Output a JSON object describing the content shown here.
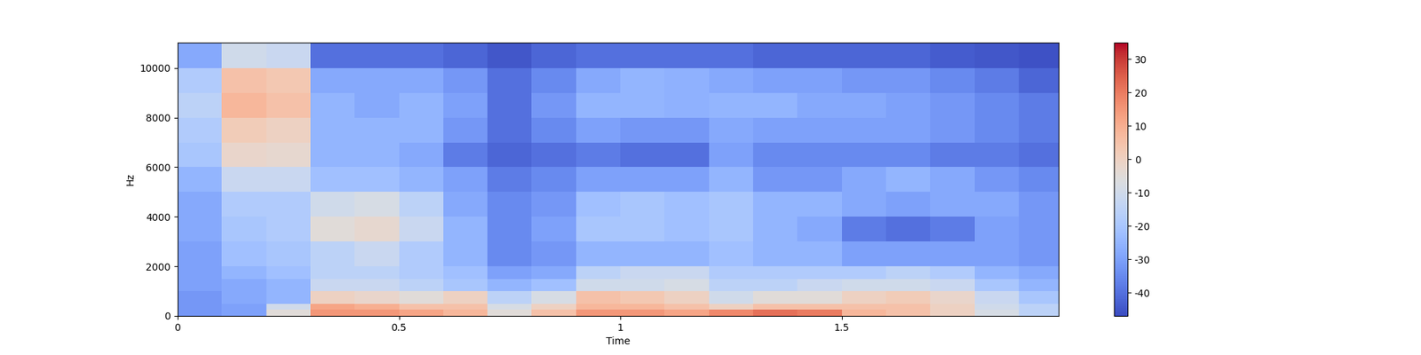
{
  "chart_data": {
    "type": "heatmap",
    "x_label": "Time",
    "y_label": "Hz",
    "x_edges": [
      0,
      0.1,
      0.2,
      0.3,
      0.4,
      0.5,
      0.6,
      0.7,
      0.8,
      0.9,
      1.0,
      1.1,
      1.2,
      1.3,
      1.4,
      1.5,
      1.6,
      1.7,
      1.8,
      1.9,
      1.99
    ],
    "y_edges": [
      0,
      250,
      500,
      1000,
      1500,
      2000,
      3000,
      4000,
      5000,
      6000,
      7000,
      8000,
      9000,
      10000,
      11025
    ],
    "cells": [
      [
        -32,
        -30,
        -5,
        15,
        15,
        12,
        8,
        -5,
        5,
        15,
        15,
        12,
        18,
        22,
        20,
        8,
        5,
        0,
        -8,
        -15
      ],
      [
        -32,
        -30,
        -10,
        12,
        10,
        5,
        5,
        -8,
        0,
        8,
        8,
        5,
        0,
        5,
        5,
        5,
        5,
        0,
        -10,
        -15
      ],
      [
        -32,
        -28,
        -25,
        0,
        -2,
        -5,
        0,
        -15,
        -8,
        5,
        3,
        0,
        -10,
        -5,
        -5,
        0,
        2,
        -2,
        -12,
        -20
      ],
      [
        -30,
        -28,
        -25,
        -12,
        -12,
        -15,
        -20,
        -25,
        -22,
        -10,
        -10,
        -8,
        -15,
        -15,
        -12,
        -10,
        -10,
        -12,
        -20,
        -25
      ],
      [
        -30,
        -25,
        -22,
        -15,
        -15,
        -18,
        -22,
        -30,
        -28,
        -15,
        -12,
        -12,
        -18,
        -18,
        -18,
        -18,
        -15,
        -18,
        -25,
        -28
      ],
      [
        -30,
        -22,
        -20,
        -15,
        -12,
        -18,
        -25,
        -35,
        -32,
        -25,
        -25,
        -25,
        -22,
        -25,
        -25,
        -30,
        -30,
        -30,
        -30,
        -32
      ],
      [
        -28,
        -20,
        -18,
        -5,
        -3,
        -12,
        -25,
        -35,
        -30,
        -20,
        -20,
        -22,
        -20,
        -25,
        -28,
        -38,
        -40,
        -38,
        -30,
        -32
      ],
      [
        -28,
        -18,
        -18,
        -10,
        -8,
        -15,
        -28,
        -35,
        -32,
        -22,
        -20,
        -22,
        -20,
        -25,
        -25,
        -28,
        -30,
        -28,
        -28,
        -32
      ],
      [
        -25,
        -12,
        -12,
        -22,
        -22,
        -25,
        -30,
        -38,
        -35,
        -30,
        -30,
        -30,
        -25,
        -32,
        -32,
        -28,
        -25,
        -28,
        -32,
        -35
      ],
      [
        -20,
        -2,
        -3,
        -25,
        -25,
        -28,
        -38,
        -42,
        -40,
        -38,
        -40,
        -40,
        -30,
        -35,
        -35,
        -35,
        -35,
        -38,
        -38,
        -40
      ],
      [
        -18,
        2,
        0,
        -25,
        -25,
        -25,
        -32,
        -40,
        -35,
        -30,
        -32,
        -32,
        -28,
        -30,
        -30,
        -30,
        -30,
        -32,
        -35,
        -38
      ],
      [
        -15,
        8,
        5,
        -25,
        -28,
        -25,
        -30,
        -40,
        -32,
        -25,
        -25,
        -26,
        -25,
        -25,
        -28,
        -28,
        -30,
        -32,
        -35,
        -38
      ],
      [
        -18,
        5,
        3,
        -28,
        -28,
        -28,
        -32,
        -40,
        -35,
        -28,
        -25,
        -26,
        -28,
        -30,
        -30,
        -32,
        -32,
        -35,
        -38,
        -42
      ],
      [
        -28,
        -10,
        -12,
        -40,
        -40,
        -40,
        -42,
        -45,
        -42,
        -40,
        -40,
        -40,
        -40,
        -42,
        -42,
        -42,
        -42,
        -44,
        -45,
        -46
      ]
    ],
    "xlim": [
      0,
      1.99
    ],
    "xticks": [
      0,
      0.5,
      1,
      1.5
    ],
    "ylim": [
      0,
      11025
    ],
    "yticks": [
      0,
      2000,
      4000,
      6000,
      8000,
      10000
    ],
    "colorbar_lim": [
      -47,
      35
    ],
    "colorbar_ticks": [
      -40,
      -30,
      -20,
      -10,
      0,
      10,
      20,
      30
    ]
  }
}
